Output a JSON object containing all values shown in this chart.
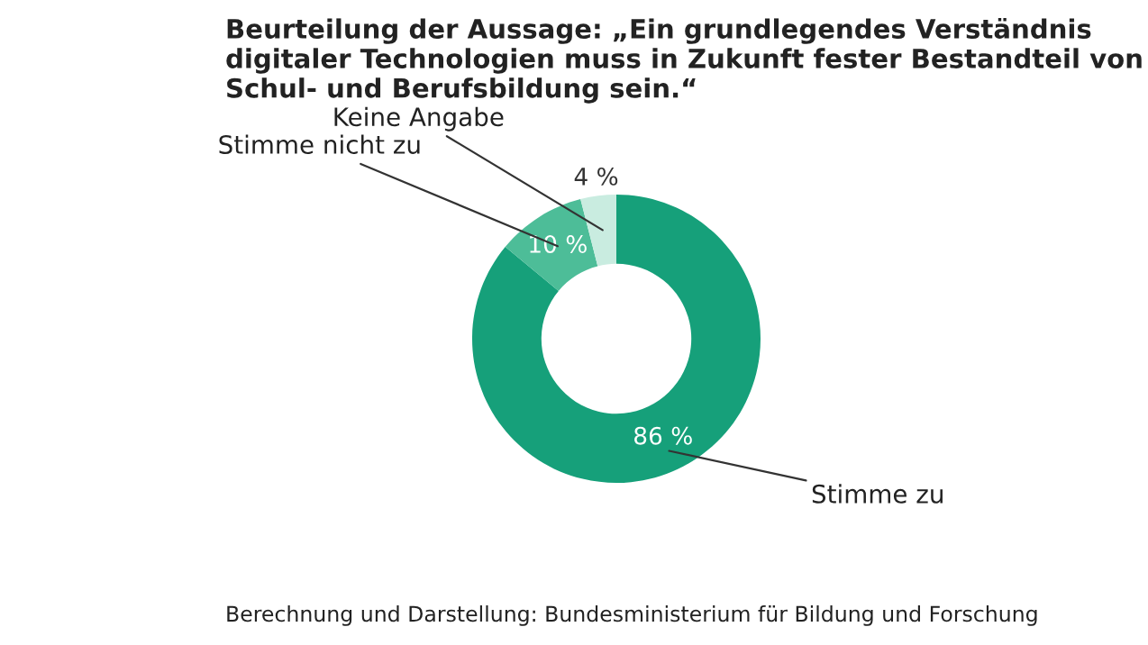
{
  "chart_data": {
    "type": "donut",
    "title": "Beurteilung der Aussage: „Ein grundlegendes Verständnis digitaler Technologien muss in Zukunft fester Bestandteil von Schul- und Berufsbildung sein.“",
    "categories": [
      "Stimme zu",
      "Stimme nicht zu",
      "Keine Angabe"
    ],
    "values": [
      86,
      10,
      4
    ],
    "value_labels": [
      "86 %",
      "10 %",
      "4 %"
    ],
    "colors": [
      "#16a07a",
      "#4dbd98",
      "#c9ece0"
    ],
    "annotations": [
      "Berechnung und Darstellung: Bundesministerium für Bildung und Forschung"
    ]
  }
}
